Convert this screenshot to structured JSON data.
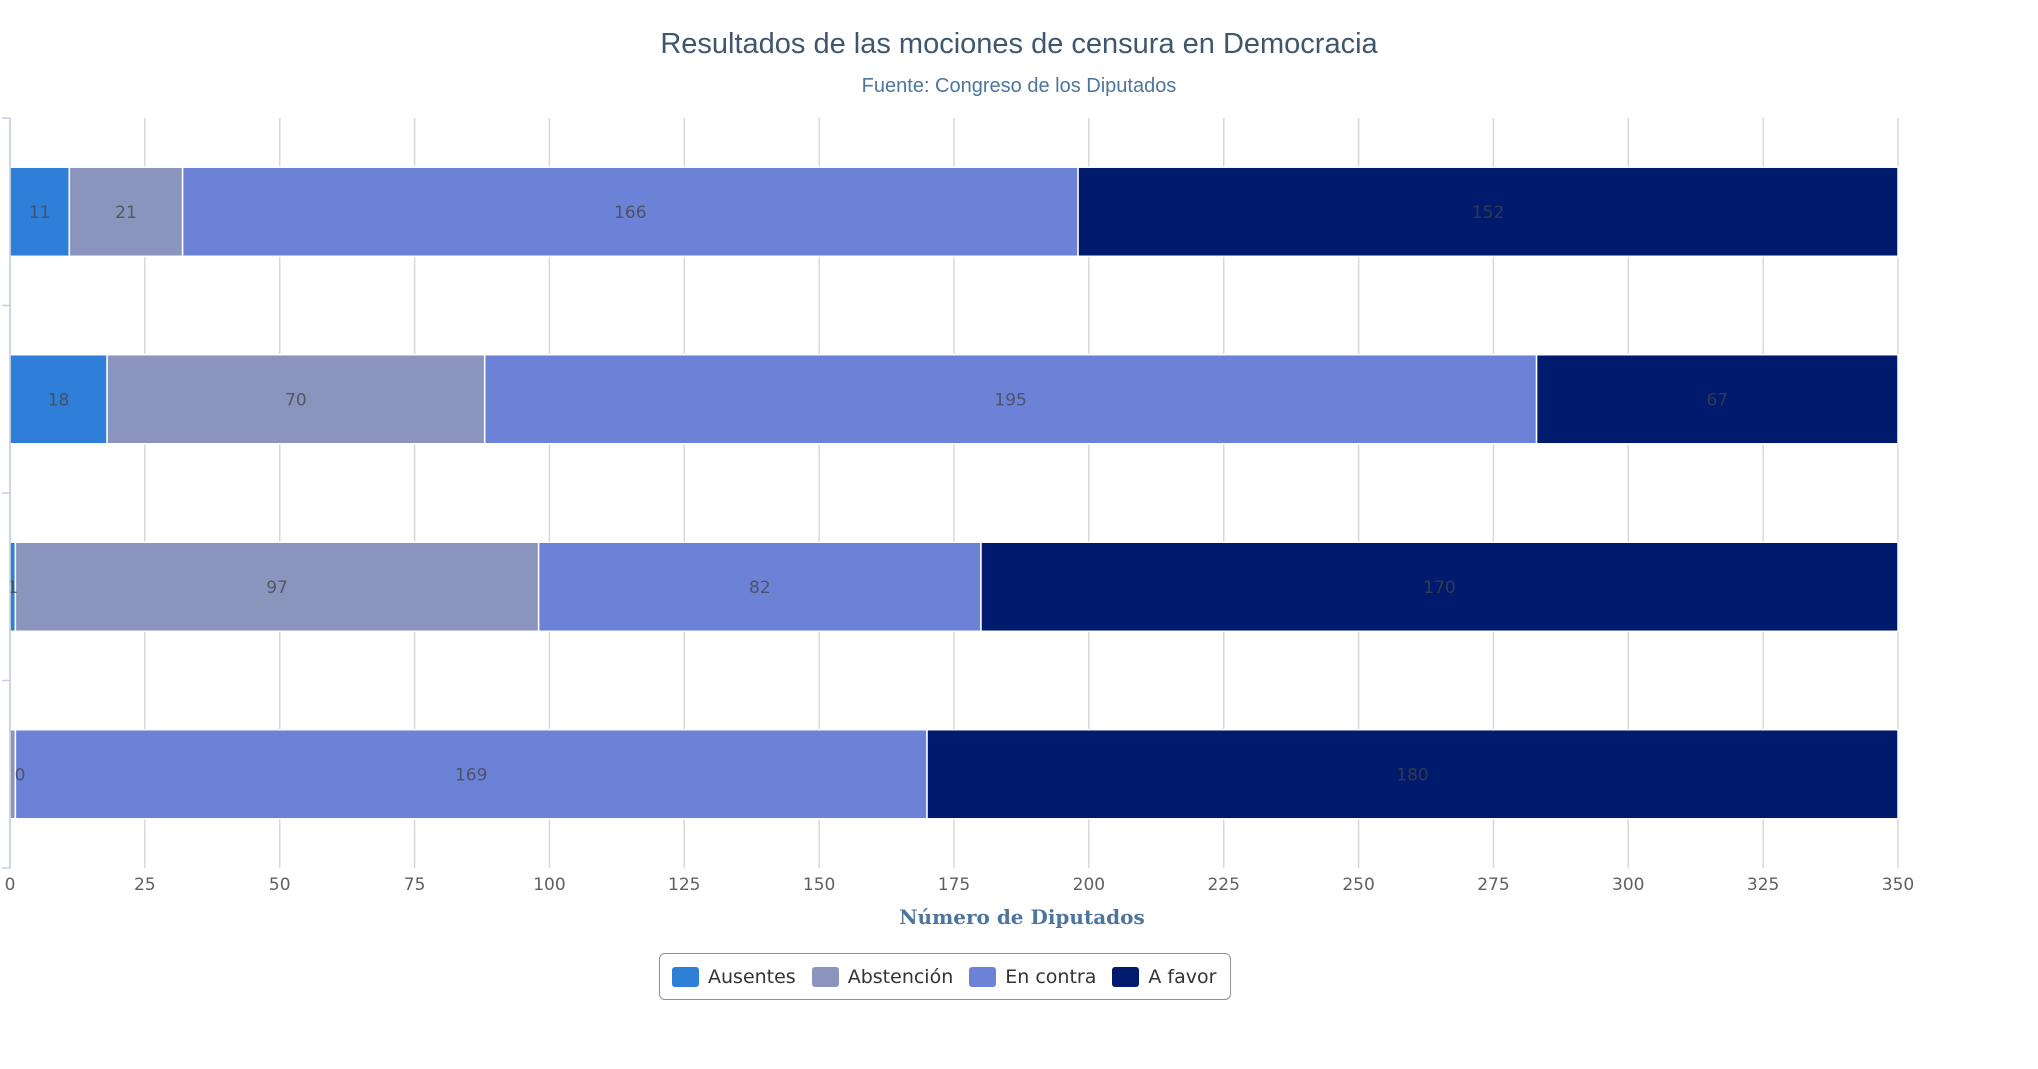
{
  "chart_data": {
    "type": "bar",
    "orientation": "horizontal",
    "stacked": true,
    "title": "Resultados de las mociones de censura en Democracia",
    "subtitle": "Fuente: Congreso de los Diputados",
    "xlabel": "Número de Diputados",
    "xlim": [
      0,
      350
    ],
    "x_ticks": [
      "0",
      "25",
      "50",
      "75",
      "100",
      "125",
      "150",
      "175",
      "200",
      "225",
      "250",
      "275",
      "300",
      "325",
      "350"
    ],
    "grid": true,
    "legend_position": "bottom-center",
    "series": [
      {
        "name": "Ausentes",
        "color": "#2f7ed8",
        "values": [
          11,
          18,
          1,
          0
        ]
      },
      {
        "name": "Abstención",
        "color": "#8a94bc",
        "values": [
          21,
          70,
          97,
          1
        ]
      },
      {
        "name": "En contra",
        "color": "#6b82d6",
        "values": [
          166,
          195,
          82,
          169
        ]
      },
      {
        "name": "A favor",
        "color": "#001a6e",
        "values": [
          152,
          67,
          170,
          180
        ]
      }
    ],
    "data_labels": [
      [
        "11",
        "21",
        "166",
        "152"
      ],
      [
        "18",
        "70",
        "195",
        "67"
      ],
      [
        "1",
        "97",
        "82",
        "170"
      ],
      [
        "0",
        "",
        "169",
        "180"
      ]
    ]
  }
}
